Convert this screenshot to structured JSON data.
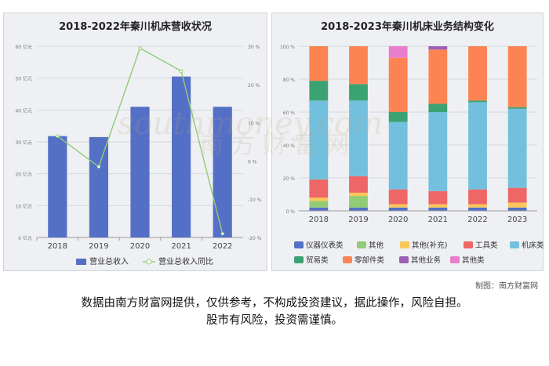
{
  "charts": {
    "left": {
      "title": "2018-2022年秦川机床营收状况"
    },
    "right": {
      "title": "2018-2023年秦川机床业务结构变化"
    }
  },
  "footer": {
    "credit": "制图：南方财富网",
    "disclaimer_line1": "数据由南方财富网提供，仅供参考，不构成投资建议，据此操作，风险自担。",
    "disclaimer_line2": "股市有风险，投资需谨慎。"
  },
  "watermark": {
    "text_cn": "南方财富网",
    "text_en": "southmoney.com"
  },
  "chart_data": [
    {
      "type": "bar",
      "title": "2018-2022年秦川机床营收状况",
      "categories": [
        "2018",
        "2019",
        "2020",
        "2021",
        "2022"
      ],
      "y_left": {
        "ticks": [
          "0 亿元",
          "10 亿元",
          "20 亿元",
          "30 亿元",
          "40 亿元",
          "50 亿元",
          "60 亿元"
        ],
        "range": [
          0,
          60
        ]
      },
      "y_right": {
        "ticks": [
          "-20 %",
          "-10 %",
          "0 %",
          "10 %",
          "20 %",
          "30 %"
        ],
        "range": [
          -20,
          30
        ]
      },
      "series": [
        {
          "name": "营业总收入",
          "kind": "bar",
          "axis": "left",
          "color": "#5470c6",
          "values": [
            31.8,
            31.5,
            41.0,
            50.5,
            41.0
          ]
        },
        {
          "name": "营业总收入同比",
          "kind": "line",
          "axis": "right",
          "color": "#91cc75",
          "values": [
            6.5,
            -1.5,
            29.5,
            23.5,
            -19.0
          ]
        }
      ],
      "legend_position": "bottom",
      "grid": true
    },
    {
      "type": "bar",
      "stacked": true,
      "title": "2018-2023年秦川机床业务结构变化",
      "categories": [
        "2018",
        "2019",
        "2020",
        "2021",
        "2022",
        "2023"
      ],
      "y": {
        "ticks": [
          "0 %",
          "20 %",
          "40 %",
          "60 %",
          "80 %",
          "100 %"
        ],
        "range": [
          0,
          100
        ]
      },
      "series": [
        {
          "name": "仪器仪表类",
          "color": "#5470c6",
          "values": [
            2,
            2,
            2,
            2,
            2,
            2
          ]
        },
        {
          "name": "其他",
          "color": "#91cc75",
          "values": [
            4,
            7,
            0,
            0,
            0,
            0
          ]
        },
        {
          "name": "其他(补充)",
          "color": "#fac858",
          "values": [
            2,
            2,
            2,
            2,
            2,
            3
          ]
        },
        {
          "name": "工具类",
          "color": "#ee6666",
          "values": [
            11,
            10,
            9,
            8,
            9,
            9
          ]
        },
        {
          "name": "机床类",
          "color": "#73c0de",
          "values": [
            48,
            46,
            41,
            48,
            53,
            48
          ]
        },
        {
          "name": "贸易类",
          "color": "#3ba272",
          "values": [
            12,
            10,
            6,
            5,
            1,
            1
          ]
        },
        {
          "name": "零部件类",
          "color": "#fc8452",
          "values": [
            21,
            23,
            33,
            33,
            33,
            37
          ]
        },
        {
          "name": "其他业务",
          "color": "#9a60b4",
          "values": [
            0,
            0,
            0,
            2,
            0,
            0
          ]
        },
        {
          "name": "其他类",
          "color": "#ea7ccc",
          "values": [
            0,
            0,
            7,
            0,
            0,
            0
          ]
        }
      ],
      "legend_position": "bottom",
      "grid": true
    }
  ]
}
